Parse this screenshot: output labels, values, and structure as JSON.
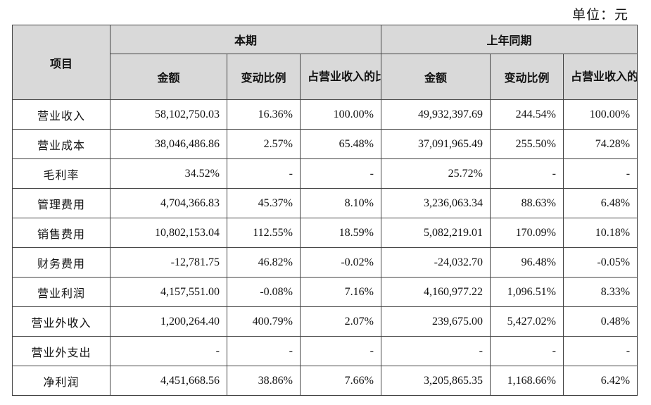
{
  "unit_label": "单位：元",
  "header": {
    "item": "项目",
    "current_period": "本期",
    "prior_period": "上年同期",
    "amount": "金额",
    "change_ratio": "变动比例",
    "share_of_revenue": "占营业收入的比重"
  },
  "rows": [
    {
      "label": "营业收入",
      "cur_amount": "58,102,750.03",
      "cur_change": "16.36%",
      "cur_share": "100.00%",
      "prev_amount": "49,932,397.69",
      "prev_change": "244.54%",
      "prev_share": "100.00%"
    },
    {
      "label": "营业成本",
      "cur_amount": "38,046,486.86",
      "cur_change": "2.57%",
      "cur_share": "65.48%",
      "prev_amount": "37,091,965.49",
      "prev_change": "255.50%",
      "prev_share": "74.28%"
    },
    {
      "label": "毛利率",
      "cur_amount": "34.52%",
      "cur_change": "-",
      "cur_share": "-",
      "prev_amount": "25.72%",
      "prev_change": "-",
      "prev_share": "-"
    },
    {
      "label": "管理费用",
      "cur_amount": "4,704,366.83",
      "cur_change": "45.37%",
      "cur_share": "8.10%",
      "prev_amount": "3,236,063.34",
      "prev_change": "88.63%",
      "prev_share": "6.48%"
    },
    {
      "label": "销售费用",
      "cur_amount": "10,802,153.04",
      "cur_change": "112.55%",
      "cur_share": "18.59%",
      "prev_amount": "5,082,219.01",
      "prev_change": "170.09%",
      "prev_share": "10.18%"
    },
    {
      "label": "财务费用",
      "cur_amount": "-12,781.75",
      "cur_change": "46.82%",
      "cur_share": "-0.02%",
      "prev_amount": "-24,032.70",
      "prev_change": "96.48%",
      "prev_share": "-0.05%"
    },
    {
      "label": "营业利润",
      "cur_amount": "4,157,551.00",
      "cur_change": "-0.08%",
      "cur_share": "7.16%",
      "prev_amount": "4,160,977.22",
      "prev_change": "1,096.51%",
      "prev_share": "8.33%"
    },
    {
      "label": "营业外收入",
      "cur_amount": "1,200,264.40",
      "cur_change": "400.79%",
      "cur_share": "2.07%",
      "prev_amount": "239,675.00",
      "prev_change": "5,427.02%",
      "prev_share": "0.48%"
    },
    {
      "label": "营业外支出",
      "cur_amount": "-",
      "cur_change": "-",
      "cur_share": "-",
      "prev_amount": "-",
      "prev_change": "-",
      "prev_share": "-"
    },
    {
      "label": "净利润",
      "cur_amount": "4,451,668.56",
      "cur_change": "38.86%",
      "cur_share": "7.66%",
      "prev_amount": "3,205,865.35",
      "prev_change": "1,168.66%",
      "prev_share": "6.42%"
    }
  ]
}
